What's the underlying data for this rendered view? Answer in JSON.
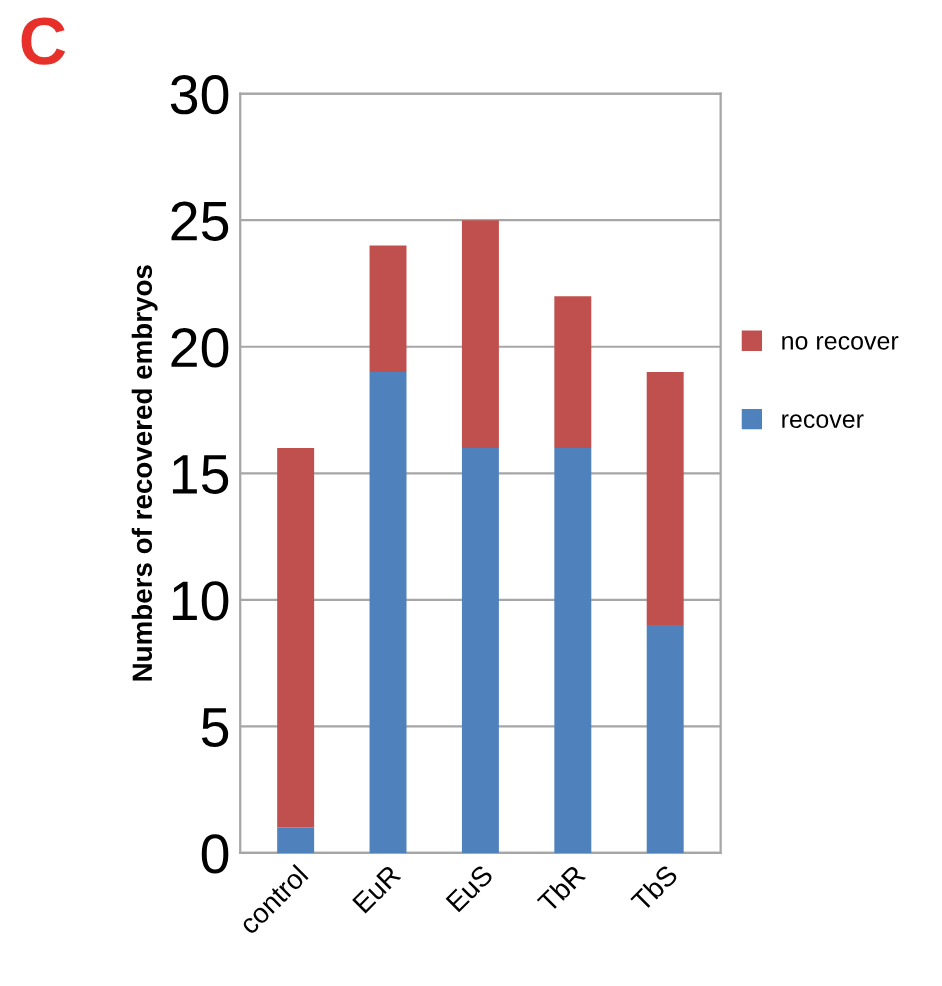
{
  "chart_data": {
    "type": "bar",
    "title": "C",
    "ylabel": "Numbers of recovered embryos",
    "categories": [
      "control",
      "EuR",
      "EuS",
      "TbR",
      "TbS"
    ],
    "series": [
      {
        "name": "recover",
        "color": "#4f81bd",
        "values": [
          1,
          19,
          16,
          16,
          9
        ]
      },
      {
        "name": "no recover",
        "color": "#c0504d",
        "values": [
          15,
          5,
          9,
          6,
          10
        ]
      }
    ],
    "stacked": true,
    "ylim": [
      0,
      30
    ],
    "yticks": [
      0,
      5,
      10,
      15,
      20,
      25,
      30
    ],
    "grid": "y",
    "legend": "right"
  }
}
